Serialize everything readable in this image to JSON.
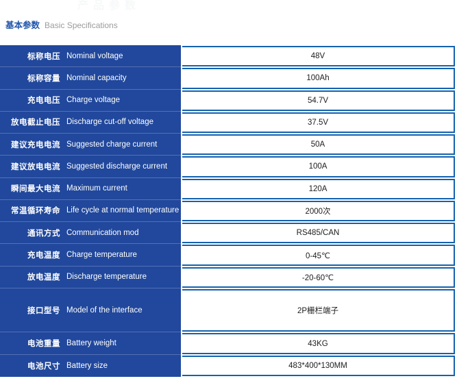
{
  "watermark": "产品参数",
  "header": {
    "title_cn": "基本参数",
    "title_en": "Basic Specifications"
  },
  "colors": {
    "row_blue": "#21489c",
    "row_divider_blue": "#5470b5",
    "cell_border_blue": "#1362ae",
    "title_blue": "#2256ac",
    "title_gray": "#9b9b9b",
    "value_text": "#1c1c1c"
  },
  "table": {
    "rows": [
      {
        "cn": "标称电压",
        "en": "Nominal voltage",
        "value": "48V",
        "tall": false
      },
      {
        "cn": "标称容量",
        "en": "Nominal capacity",
        "value": "100Ah",
        "tall": false
      },
      {
        "cn": "充电电压",
        "en": "Charge voltage",
        "value": "54.7V",
        "tall": false
      },
      {
        "cn": "放电截止电压",
        "en": "Discharge cut-off voltage",
        "value": "37.5V",
        "tall": false
      },
      {
        "cn": "建议充电电流",
        "en": "Suggested charge current",
        "value": "50A",
        "tall": false
      },
      {
        "cn": "建议放电电流",
        "en": "Suggested discharge current",
        "value": "100A",
        "tall": false
      },
      {
        "cn": "瞬间最大电流",
        "en": "Maximum current",
        "value": "120A",
        "tall": false
      },
      {
        "cn": "常温循环寿命",
        "en": "Life cycle at normal temperature",
        "value": "2000次",
        "tall": false
      },
      {
        "cn": "通讯方式",
        "en": "Communication mod",
        "value": "RS485/CAN",
        "tall": false
      },
      {
        "cn": "充电温度",
        "en": "Charge temperature",
        "value": "0-45℃",
        "tall": false
      },
      {
        "cn": "放电温度",
        "en": "Discharge temperature",
        "value": "-20-60℃",
        "tall": false
      },
      {
        "cn": "接口型号",
        "en": "Model of the interface",
        "value": "2P栅栏端子",
        "tall": true
      },
      {
        "cn": "电池重量",
        "en": "Battery weight",
        "value": "43KG",
        "tall": false
      },
      {
        "cn": "电池尺寸",
        "en": "Battery size",
        "value": "483*400*130MM",
        "tall": false
      }
    ]
  }
}
